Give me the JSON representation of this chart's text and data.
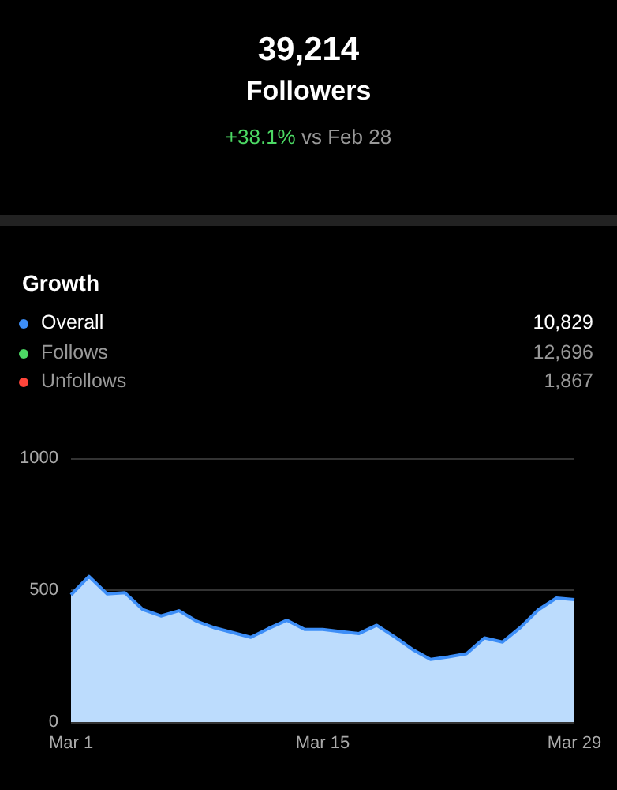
{
  "chart_data": {
    "type": "area",
    "title": "Growth",
    "annotations": [
      "39,214",
      "Followers",
      "+38.1%",
      "vs Feb 28",
      "10,829",
      "12,696",
      "1,867"
    ],
    "categories": [
      "Mar 1",
      null,
      null,
      null,
      null,
      null,
      null,
      null,
      null,
      null,
      null,
      null,
      null,
      null,
      "Mar 15",
      null,
      null,
      null,
      null,
      null,
      null,
      null,
      null,
      null,
      null,
      null,
      null,
      null,
      "Mar 29"
    ],
    "series": [
      {
        "name": "Overall",
        "color": "#3d8ef7",
        "values": [
          482,
          552,
          486,
          490,
          426,
          402,
          422,
          382,
          357,
          339,
          321,
          355,
          386,
          351,
          351,
          343,
          335,
          367,
          323,
          275,
          237,
          247,
          259,
          319,
          303,
          359,
          426,
          470,
          464
        ]
      },
      {
        "name": "Follows",
        "color": "#4cd964",
        "values": [
          null,
          null,
          null,
          null,
          null,
          null,
          null,
          null,
          null,
          null,
          null,
          null,
          null,
          null,
          null,
          null,
          null,
          null,
          null,
          null,
          null,
          null,
          null,
          null,
          null,
          null,
          null,
          null,
          null
        ]
      },
      {
        "name": "Unfollows",
        "color": "#ff453a",
        "values": [
          null,
          null,
          null,
          null,
          null,
          null,
          null,
          null,
          null,
          null,
          null,
          null,
          null,
          null,
          null,
          null,
          null,
          null,
          null,
          null,
          null,
          null,
          null,
          null,
          null,
          null,
          null,
          null,
          null
        ]
      }
    ],
    "ylim": [
      0,
      1000
    ],
    "yticks": [
      0,
      500,
      1000
    ],
    "grid": "y",
    "legend": "top left",
    "marker": "none"
  }
}
